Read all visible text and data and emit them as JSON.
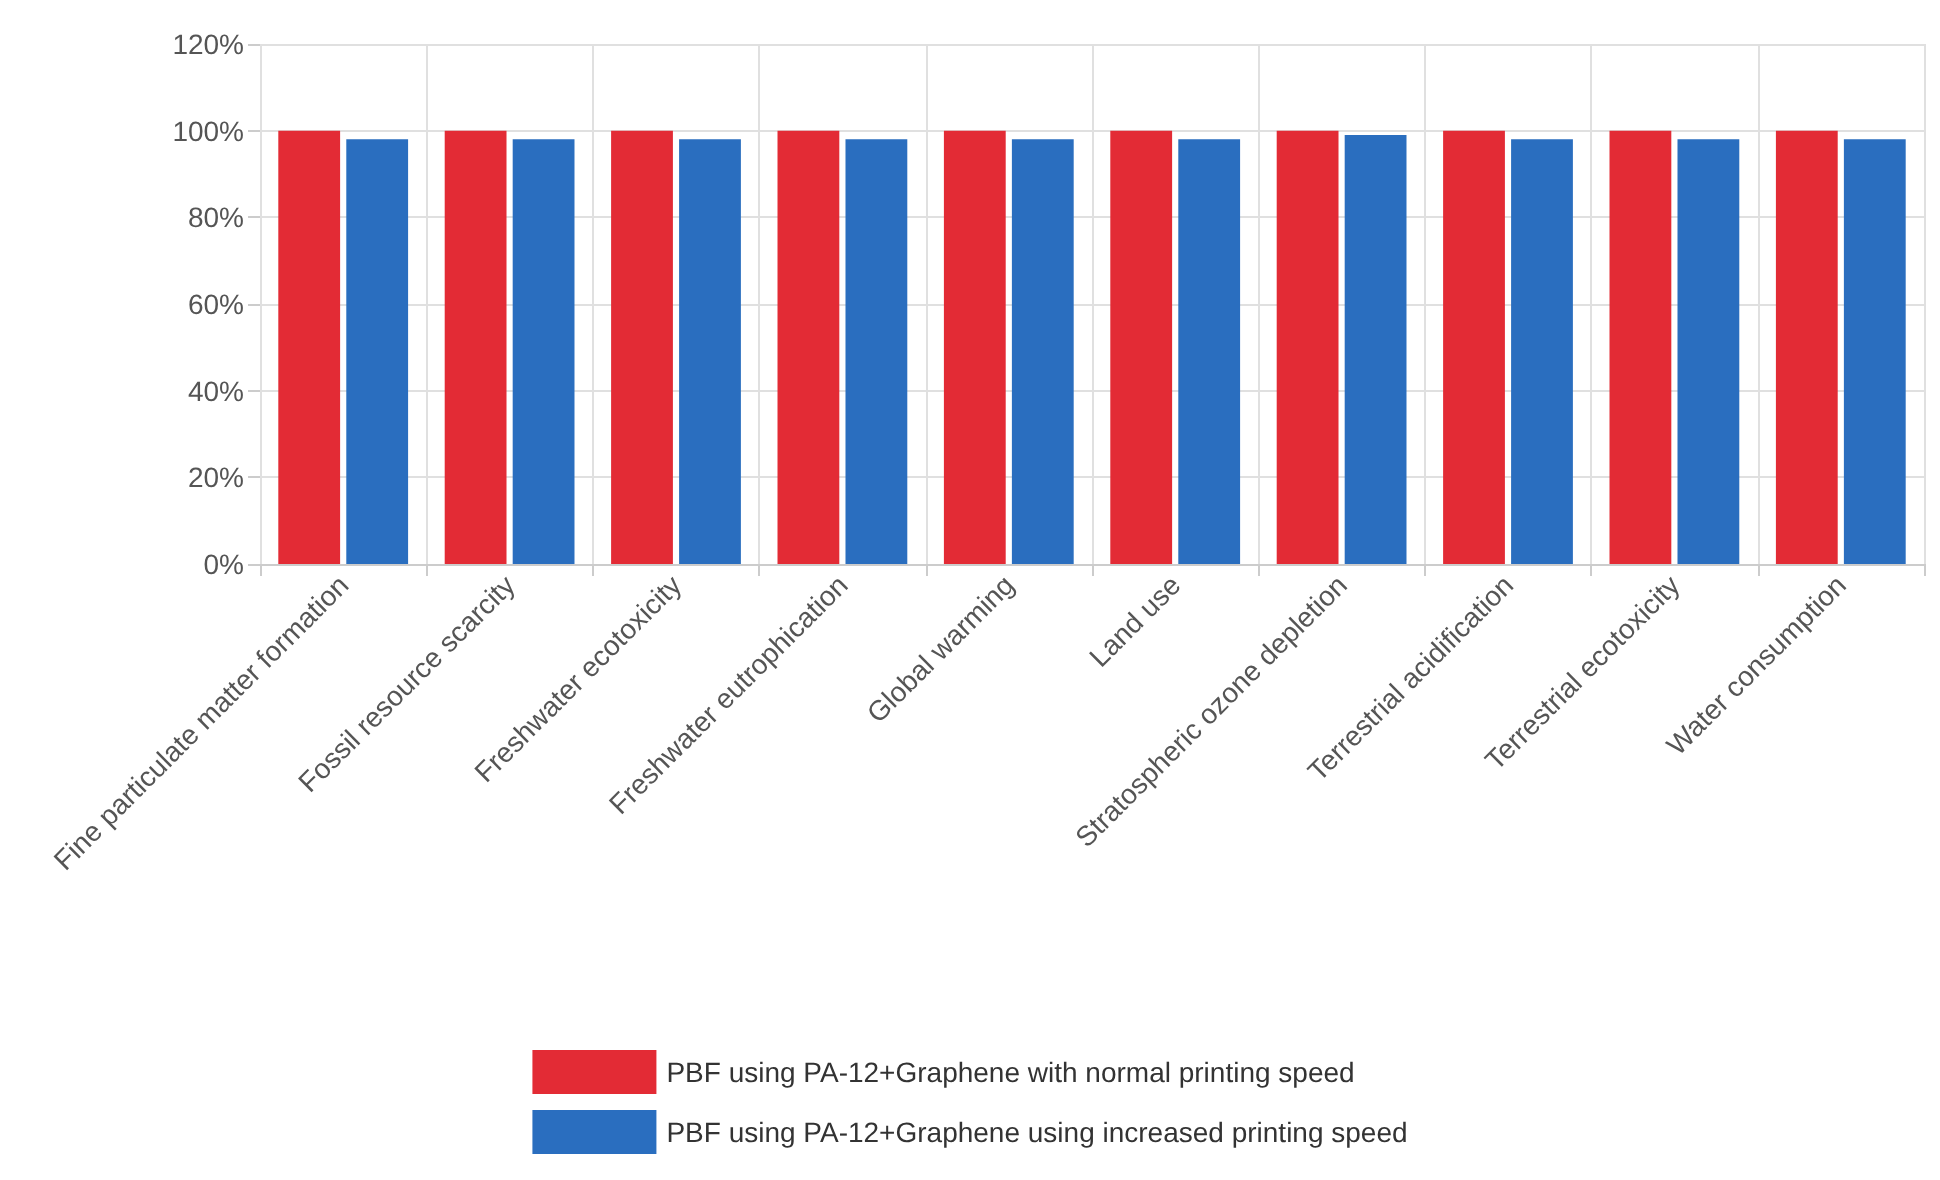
{
  "chart_data": {
    "type": "bar",
    "categories": [
      "Fine particulate matter formation",
      "Fossil resource scarcity",
      "Freshwater ecotoxicity",
      "Freshwater eutrophication",
      "Global warming",
      "Land use",
      "Stratospheric ozone depletion",
      "Terrestrial acidification",
      "Terrestrial ecotoxicity",
      "Water consumption"
    ],
    "series": [
      {
        "name": "PBF using PA-12+Graphene with normal printing speed",
        "color": "#e32b35",
        "values": [
          100,
          100,
          100,
          100,
          100,
          100,
          100,
          100,
          100,
          100
        ]
      },
      {
        "name": "PBF using PA-12+Graphene using increased printing speed",
        "color": "#2a6ebf",
        "values": [
          98,
          98,
          98,
          98,
          98,
          98,
          99,
          98,
          98,
          98
        ]
      }
    ],
    "ylim": [
      0,
      120
    ],
    "yticks": [
      {
        "value": 0,
        "label": "0%"
      },
      {
        "value": 20,
        "label": "20%"
      },
      {
        "value": 40,
        "label": "40%"
      },
      {
        "value": 60,
        "label": "60%"
      },
      {
        "value": 80,
        "label": "80%"
      },
      {
        "value": 100,
        "label": "100%"
      },
      {
        "value": 120,
        "label": "120%"
      }
    ],
    "grid": true,
    "legend": "bottom"
  }
}
